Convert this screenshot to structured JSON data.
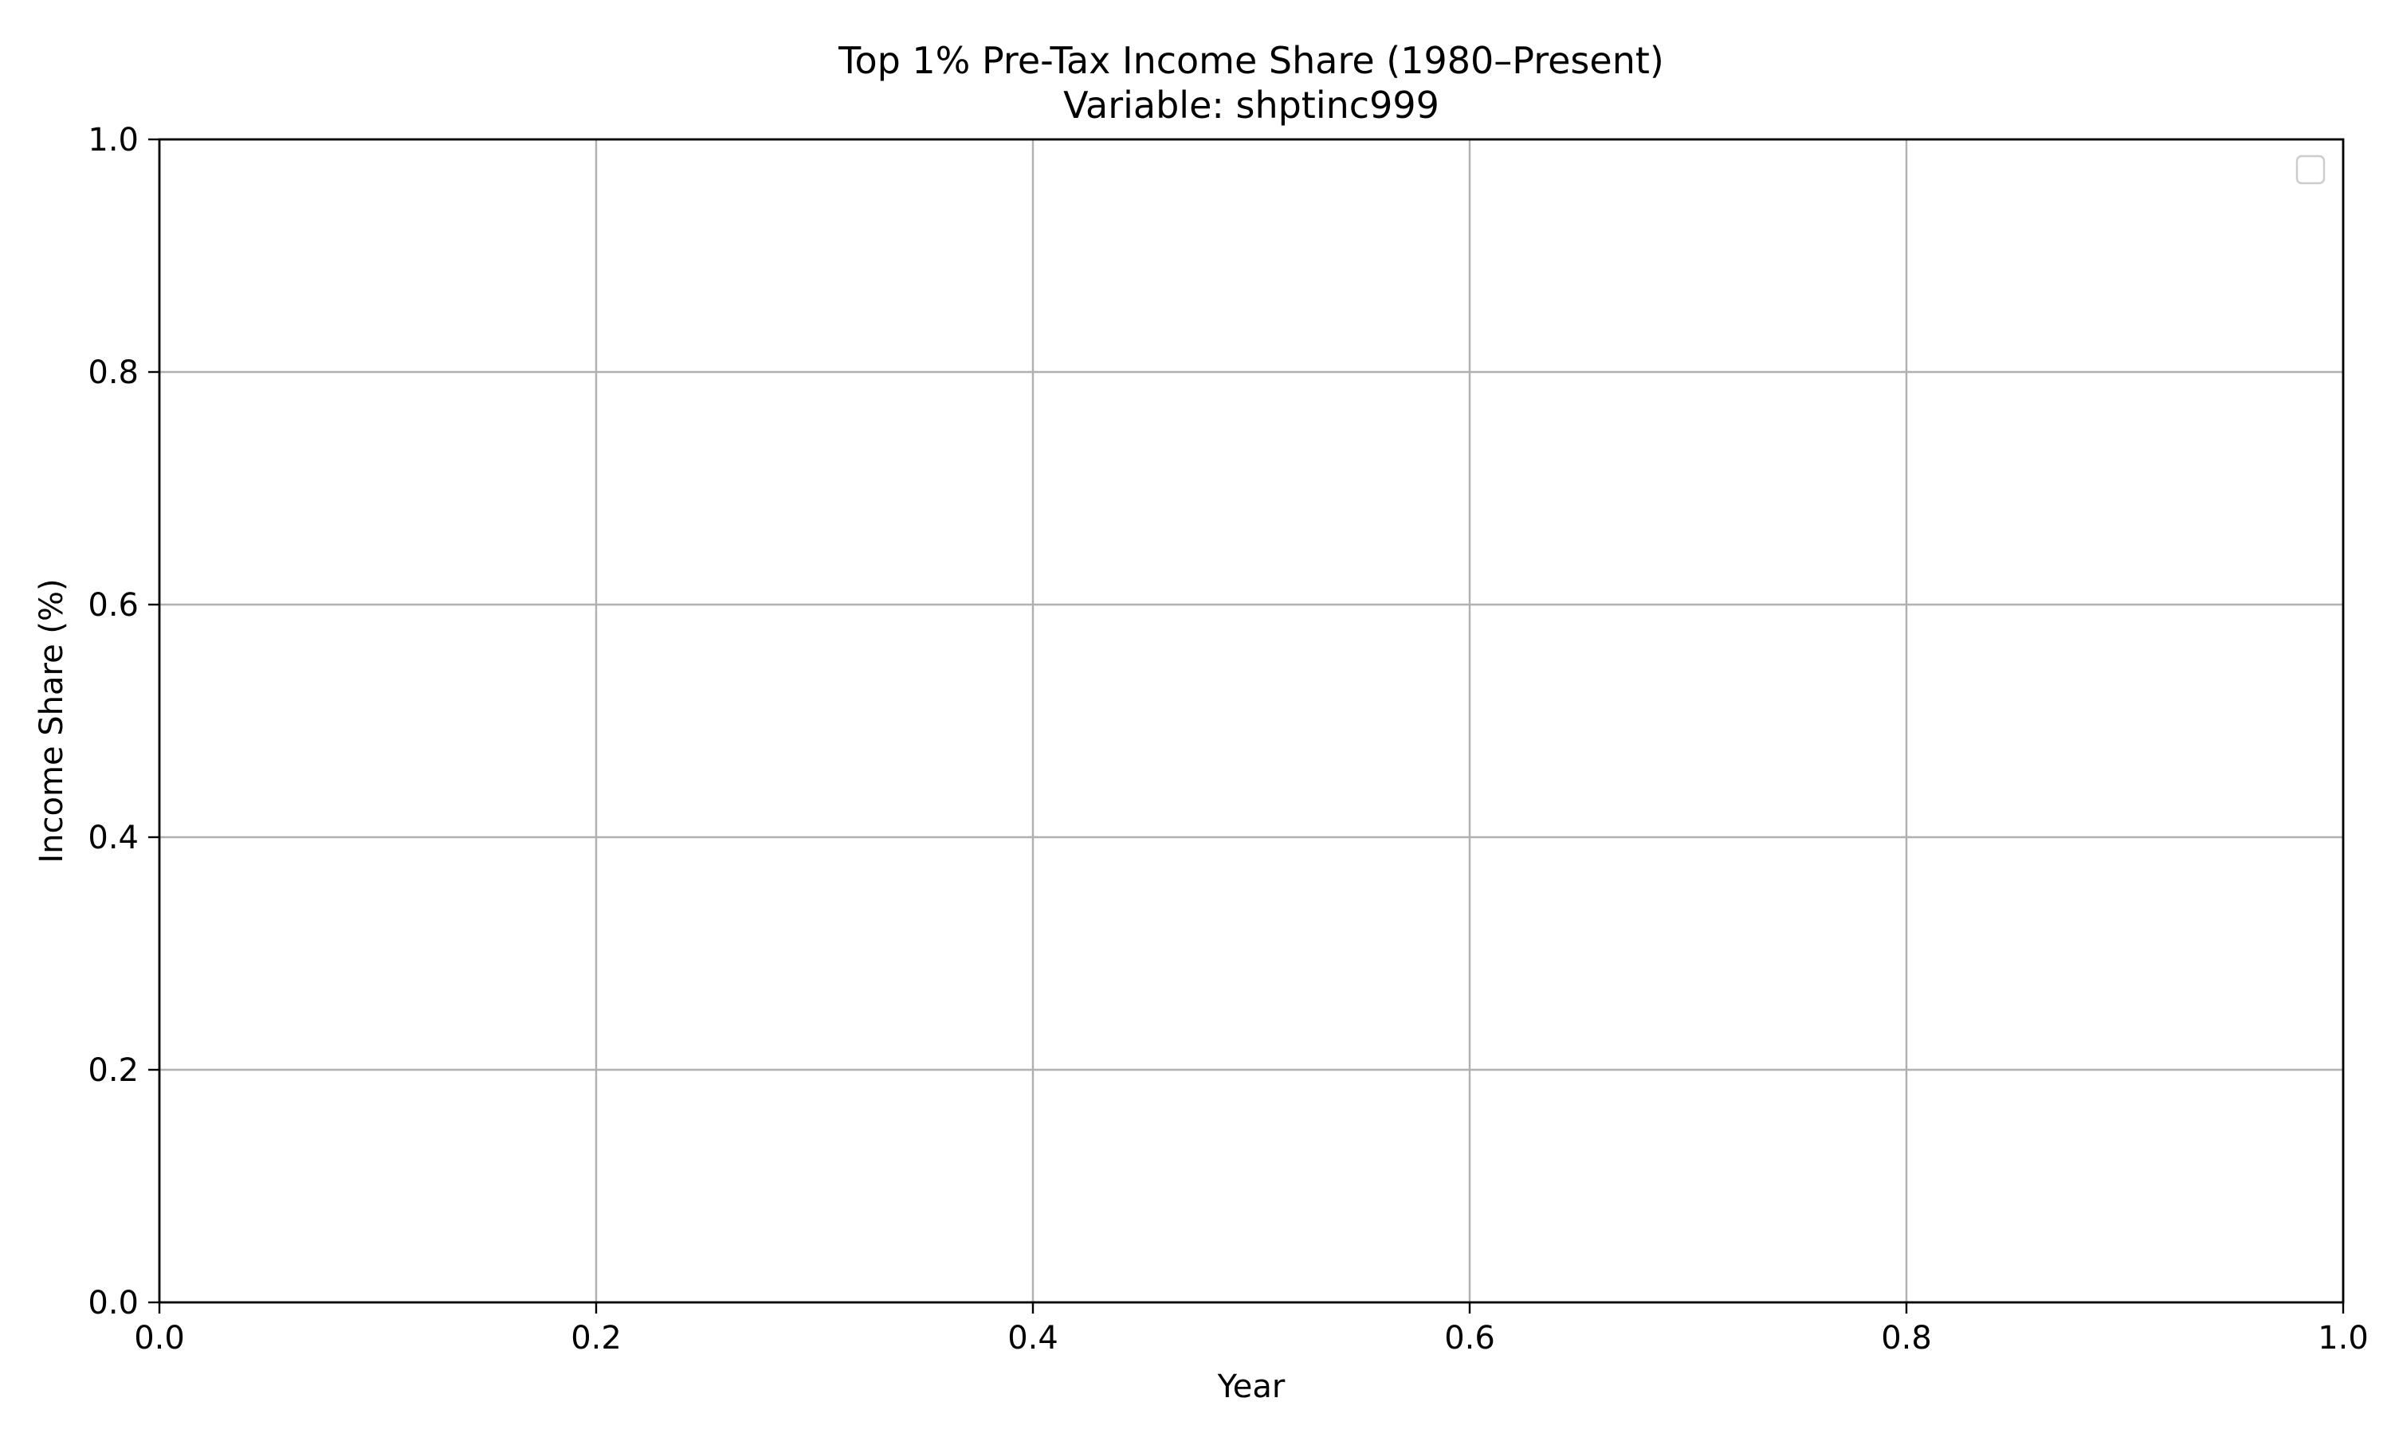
{
  "chart_data": {
    "type": "line",
    "title": "Top 1% Pre-Tax Income Share (1980–Present)",
    "subtitle": "Variable: shptinc999",
    "xlabel": "Year",
    "ylabel": "Income Share (%)",
    "xlim": [
      0.0,
      1.0
    ],
    "ylim": [
      0.0,
      1.0
    ],
    "x_ticks": [
      0.0,
      0.2,
      0.4,
      0.6,
      0.8,
      1.0
    ],
    "x_tick_labels": [
      "0.0",
      "0.2",
      "0.4",
      "0.6",
      "0.8",
      "1.0"
    ],
    "y_ticks": [
      0.0,
      0.2,
      0.4,
      0.6,
      0.8,
      1.0
    ],
    "y_tick_labels": [
      "0.0",
      "0.2",
      "0.4",
      "0.6",
      "0.8",
      "1.0"
    ],
    "grid": true,
    "legend": {
      "position": "top-right",
      "entries": []
    },
    "series": []
  }
}
